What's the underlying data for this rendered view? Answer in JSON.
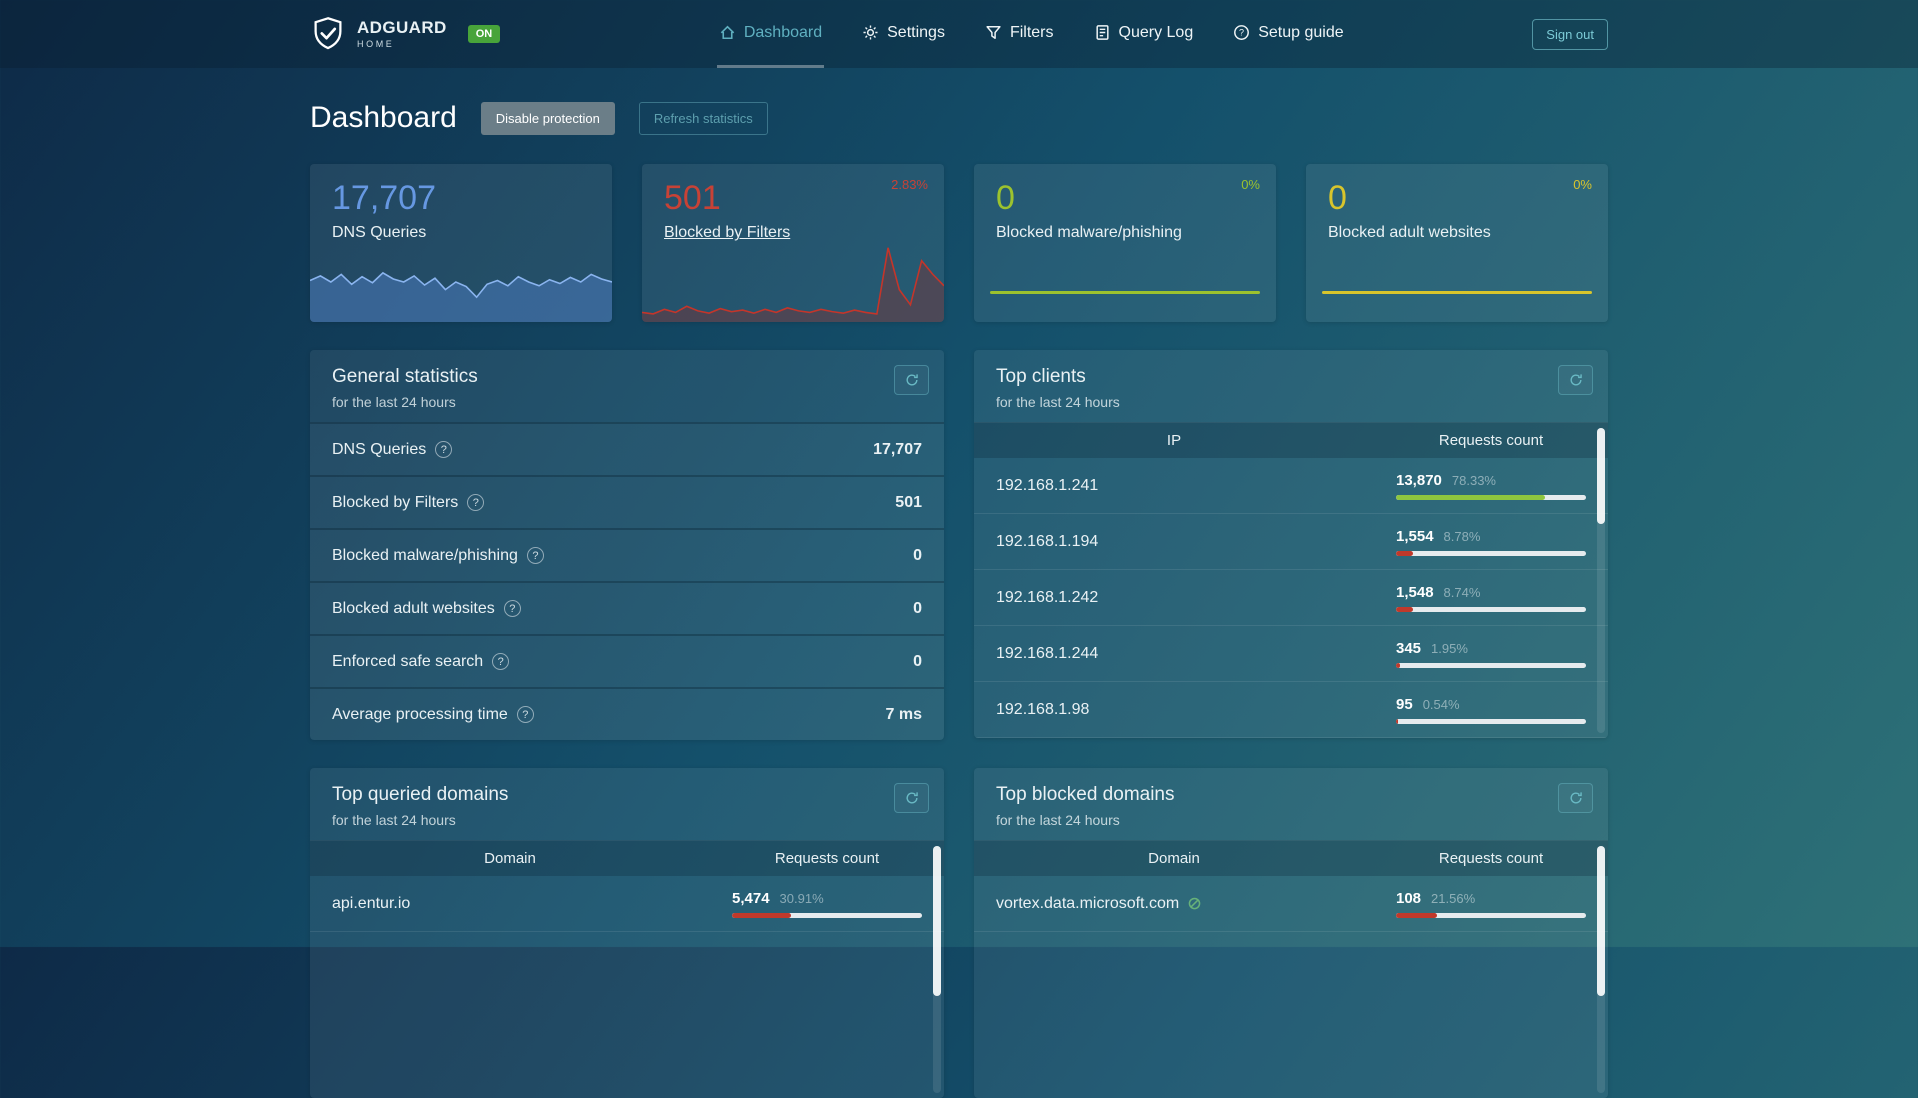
{
  "header": {
    "brand": {
      "name": "ADGUARD",
      "sub": "HOME",
      "badge": "ON"
    },
    "nav": [
      {
        "label": "Dashboard",
        "icon": "home-icon",
        "active": true
      },
      {
        "label": "Settings",
        "icon": "gear-icon",
        "active": false
      },
      {
        "label": "Filters",
        "icon": "filter-icon",
        "active": false
      },
      {
        "label": "Query Log",
        "icon": "query-log-icon",
        "active": false
      },
      {
        "label": "Setup guide",
        "icon": "setup-guide-icon",
        "active": false
      }
    ],
    "sign_out": "Sign out"
  },
  "page": {
    "title": "Dashboard",
    "buttons": {
      "disable": "Disable protection",
      "refresh": "Refresh statistics"
    }
  },
  "colors": {
    "accent_teal": "#5fb0c0",
    "blue": "#6698e2",
    "red": "#c74236",
    "green": "#9cc22e",
    "yellow": "#d8c52c",
    "bar_green": "#8ec63f",
    "bar_red": "#c0392b",
    "on_badge_green": "#48a43a"
  },
  "stat_cards": [
    {
      "value": "17,707",
      "label": "DNS Queries",
      "percent": "",
      "color": "#6698e2",
      "link": false,
      "stroke": "#8ab4ef",
      "fill": "rgba(74,122,188,0.55)",
      "spark": [
        52,
        58,
        50,
        60,
        47,
        57,
        49,
        62,
        54,
        50,
        58,
        46,
        55,
        40,
        50,
        44,
        30,
        47,
        52,
        45,
        57,
        50,
        45,
        53,
        48,
        56,
        50,
        60,
        54,
        50
      ]
    },
    {
      "value": "501",
      "label": "Blocked by Filters",
      "percent": "2.83%",
      "color": "#c74236",
      "link": true,
      "stroke": "#c4352a",
      "fill": "rgba(150,40,35,0.35)",
      "spark": [
        10,
        8,
        14,
        10,
        18,
        12,
        9,
        15,
        11,
        13,
        9,
        14,
        10,
        16,
        12,
        10,
        14,
        11,
        9,
        13,
        10,
        8,
        95,
        40,
        20,
        78,
        60,
        45
      ]
    },
    {
      "value": "0",
      "label": "Blocked malware/phishing",
      "percent": "0%",
      "color": "#9cc22e",
      "link": false,
      "stroke": "",
      "fill": "",
      "spark": null
    },
    {
      "value": "0",
      "label": "Blocked adult websites",
      "percent": "0%",
      "color": "#d8c52c",
      "link": false,
      "stroke": "",
      "fill": "",
      "spark": null
    }
  ],
  "general_stats": {
    "title": "General statistics",
    "subtitle": "for the last 24 hours",
    "rows": [
      {
        "label": "DNS Queries",
        "value": "17,707"
      },
      {
        "label": "Blocked by Filters",
        "value": "501"
      },
      {
        "label": "Blocked malware/phishing",
        "value": "0"
      },
      {
        "label": "Blocked adult websites",
        "value": "0"
      },
      {
        "label": "Enforced safe search",
        "value": "0"
      },
      {
        "label": "Average processing time",
        "value": "7 ms"
      }
    ]
  },
  "top_clients": {
    "title": "Top clients",
    "subtitle": "for the last 24 hours",
    "columns": [
      "IP",
      "Requests count"
    ],
    "rows": [
      {
        "main": "192.168.1.241",
        "count": "13,870",
        "percent": "78.33%",
        "bar": 78.33,
        "bar_color": "#8ec63f",
        "tracker": false
      },
      {
        "main": "192.168.1.194",
        "count": "1,554",
        "percent": "8.78%",
        "bar": 8.78,
        "bar_color": "#c0392b",
        "tracker": false
      },
      {
        "main": "192.168.1.242",
        "count": "1,548",
        "percent": "8.74%",
        "bar": 8.74,
        "bar_color": "#c0392b",
        "tracker": false
      },
      {
        "main": "192.168.1.244",
        "count": "345",
        "percent": "1.95%",
        "bar": 1.95,
        "bar_color": "#c0392b",
        "tracker": false
      },
      {
        "main": "192.168.1.98",
        "count": "95",
        "percent": "0.54%",
        "bar": 0.54,
        "bar_color": "#c0392b",
        "tracker": false
      }
    ]
  },
  "top_queried": {
    "title": "Top queried domains",
    "subtitle": "for the last 24 hours",
    "columns": [
      "Domain",
      "Requests count"
    ],
    "rows": [
      {
        "main": "api.entur.io",
        "count": "5,474",
        "percent": "30.91%",
        "bar": 30.91,
        "bar_color": "#c0392b",
        "tracker": false
      }
    ]
  },
  "top_blocked": {
    "title": "Top blocked domains",
    "subtitle": "for the last 24 hours",
    "columns": [
      "Domain",
      "Requests count"
    ],
    "rows": [
      {
        "main": "vortex.data.microsoft.com",
        "count": "108",
        "percent": "21.56%",
        "bar": 21.56,
        "bar_color": "#c0392b",
        "tracker": true
      }
    ]
  }
}
